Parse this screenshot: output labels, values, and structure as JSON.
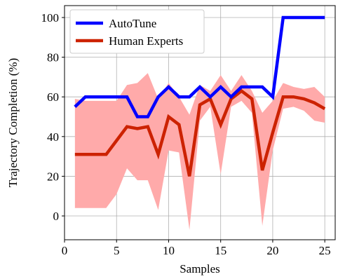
{
  "chart_data": {
    "type": "line",
    "xlabel": "Samples",
    "ylabel": "Trajectory Completion (%)",
    "xlim": [
      0,
      26
    ],
    "ylim": [
      -12,
      106
    ],
    "xticks": [
      0,
      5,
      10,
      15,
      20,
      25
    ],
    "yticks": [
      0,
      20,
      40,
      60,
      80,
      100
    ],
    "grid": true,
    "legend_position": "top-left",
    "x": [
      1,
      2,
      3,
      4,
      5,
      6,
      7,
      8,
      9,
      10,
      11,
      12,
      13,
      14,
      15,
      16,
      17,
      18,
      19,
      20,
      21,
      22,
      23,
      24,
      25
    ],
    "series": [
      {
        "name": "AutoTune",
        "color": "#0000ff",
        "values": [
          55,
          60,
          60,
          60,
          60,
          60,
          50,
          50,
          60,
          65,
          60,
          60,
          65,
          60,
          65,
          60,
          65,
          65,
          65,
          60,
          100,
          100,
          100,
          100,
          100
        ]
      },
      {
        "name": "Human Experts",
        "color": "#cc2200",
        "band_color": "#ffaaaa",
        "values": [
          31,
          31,
          31,
          31,
          38,
          45,
          44,
          45,
          31,
          50,
          46,
          20,
          56,
          59,
          46,
          59,
          63,
          59,
          23,
          42,
          60,
          60,
          59,
          57,
          54
        ],
        "lower": [
          4,
          4,
          4,
          4,
          11,
          24,
          18,
          18,
          3,
          33,
          32,
          -7,
          48,
          55,
          21,
          55,
          58,
          52,
          -5,
          33,
          54,
          55,
          53,
          48,
          47
        ],
        "upper": [
          59,
          58,
          58,
          58,
          58,
          66,
          67,
          72,
          59,
          67,
          60,
          51,
          66,
          63,
          71,
          63,
          71,
          63,
          52,
          58,
          67,
          65,
          64,
          65,
          60
        ]
      }
    ]
  }
}
